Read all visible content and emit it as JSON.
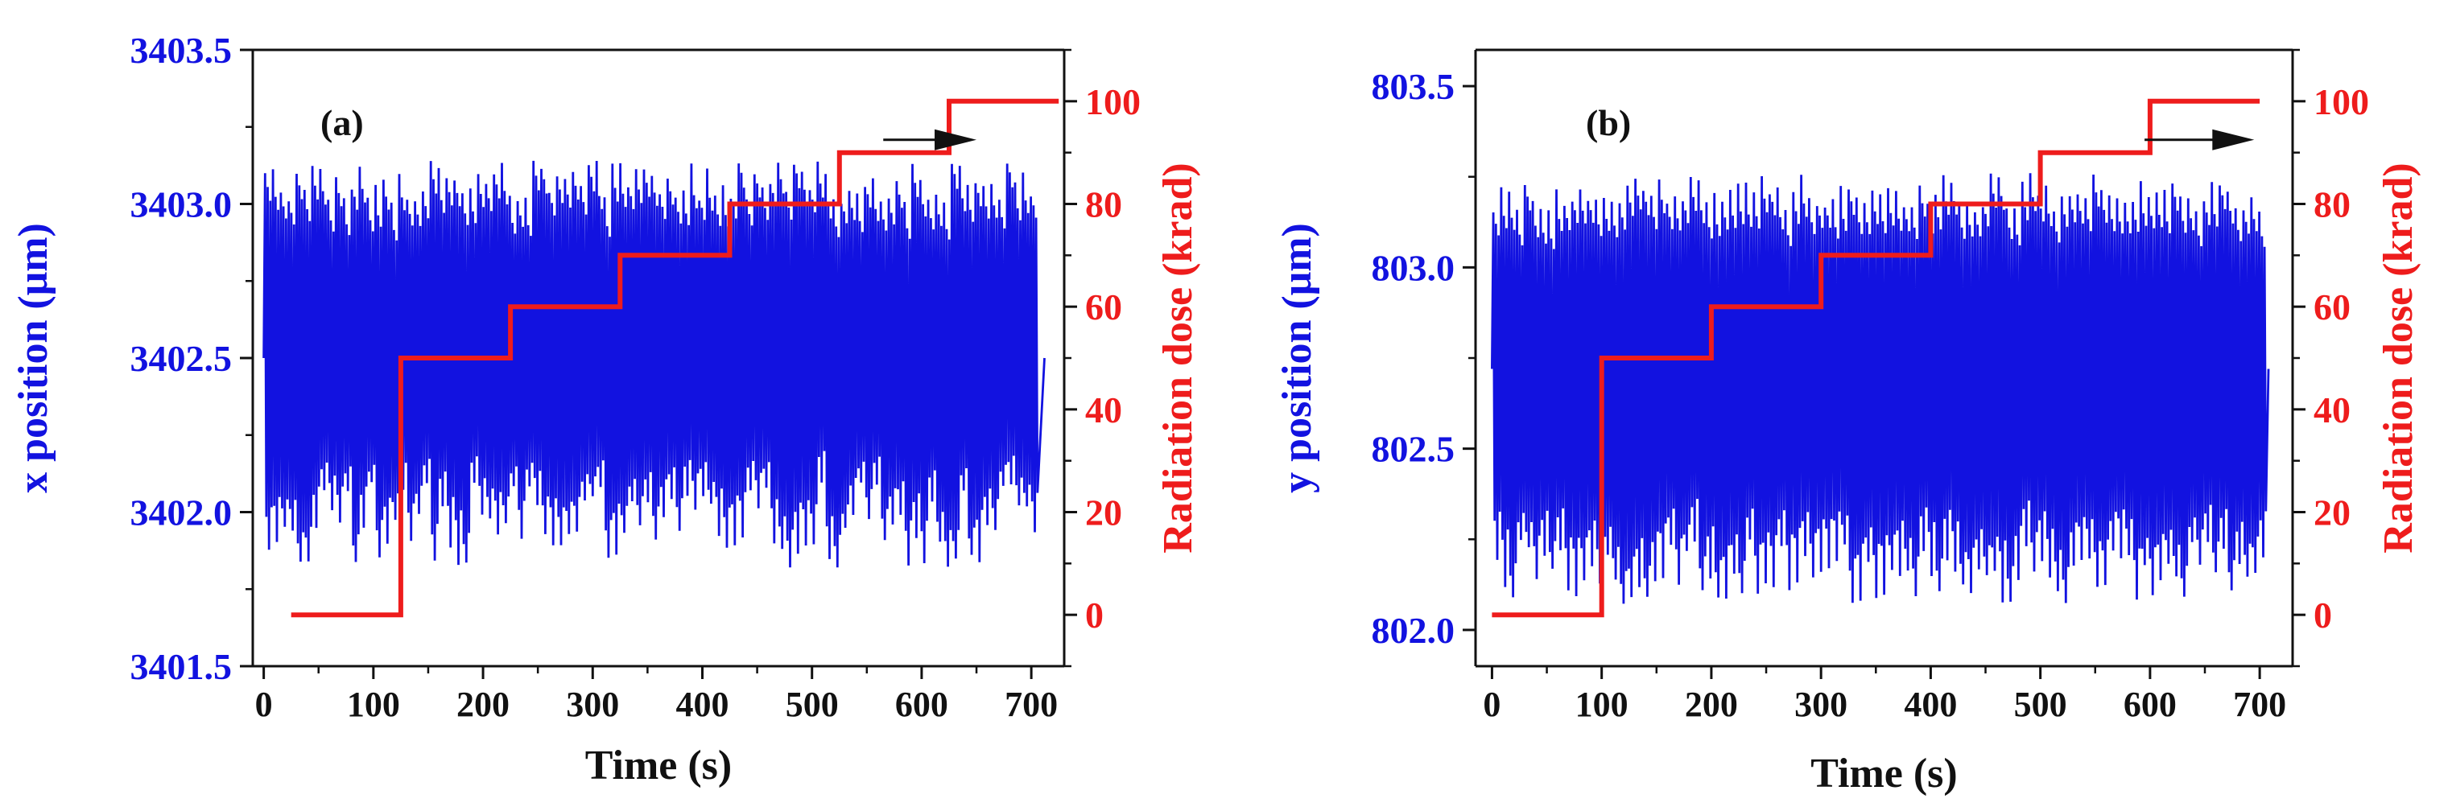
{
  "chart_data": [
    {
      "type": "line",
      "panel_label": "(a)",
      "xlabel": "Time (s)",
      "ylabel_left": "x position (μm)",
      "ylabel_right": "Radiation dose (krad)",
      "xlim": [
        -10,
        730
      ],
      "ylim_left": [
        3401.5,
        3403.5
      ],
      "ylim_right": [
        -10,
        110
      ],
      "xticks": [
        0,
        100,
        200,
        300,
        400,
        500,
        600,
        700
      ],
      "yticks_left": [
        "3401.5",
        "3402.0",
        "3402.5",
        "3403.0",
        "3403.5"
      ],
      "yticks_right": [
        0,
        20,
        40,
        60,
        80,
        100
      ],
      "series": [
        {
          "name": "x position",
          "axis": "left",
          "color": "#1212e0",
          "style": "oscillation",
          "x_start": 0,
          "x_end": 712,
          "period_s": 7.2,
          "mean": 3402.5,
          "peak_max_range": [
            3403.0,
            3403.14
          ],
          "trough_min_range": [
            3401.82,
            3402.1
          ]
        },
        {
          "name": "Radiation dose",
          "axis": "right",
          "color": "#ee1c1c",
          "style": "step",
          "x": [
            25,
            125,
            125,
            225,
            225,
            325,
            325,
            425,
            425,
            525,
            525,
            625,
            625,
            725
          ],
          "y": [
            0,
            0,
            50,
            50,
            60,
            60,
            70,
            70,
            80,
            80,
            90,
            90,
            100,
            100
          ]
        }
      ],
      "annotation": {
        "type": "arrow",
        "direction": "right",
        "x_from": 565,
        "x_to": 650,
        "y_right": 92.5
      }
    },
    {
      "type": "line",
      "panel_label": "(b)",
      "xlabel": "Time (s)",
      "ylabel_left": "y position (μm)",
      "ylabel_right": "Radiation dose (krad)",
      "xlim": [
        -15,
        730
      ],
      "ylim_left": [
        801.9,
        803.6
      ],
      "ylim_right": [
        -10,
        110
      ],
      "xticks": [
        0,
        100,
        200,
        300,
        400,
        500,
        600,
        700
      ],
      "yticks_left": [
        "802.0",
        "802.5",
        "803.0",
        "803.5"
      ],
      "yticks_right": [
        0,
        20,
        40,
        60,
        80,
        100
      ],
      "series": [
        {
          "name": "y position",
          "axis": "left",
          "color": "#1212e0",
          "style": "oscillation",
          "x_start": 0,
          "x_end": 708,
          "period_s": 7.2,
          "mean": 802.72,
          "peak_max_range": [
            803.15,
            803.26
          ],
          "trough_min_range": [
            802.07,
            802.25
          ]
        },
        {
          "name": "Radiation dose",
          "axis": "right",
          "color": "#ee1c1c",
          "style": "step",
          "x": [
            0,
            100,
            100,
            200,
            200,
            300,
            300,
            400,
            400,
            500,
            500,
            600,
            600,
            700
          ],
          "y": [
            0,
            0,
            50,
            50,
            60,
            60,
            70,
            70,
            80,
            80,
            90,
            90,
            100,
            100
          ]
        }
      ],
      "annotation": {
        "type": "arrow",
        "direction": "right",
        "x_from": 595,
        "x_to": 695,
        "y_right": 92.5
      }
    }
  ]
}
